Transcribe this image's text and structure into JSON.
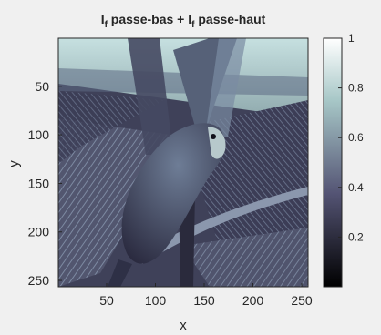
{
  "chart_data": {
    "type": "heatmap",
    "title_main": "I",
    "title_sub": "f",
    "title_rest": " passe-bas + I",
    "title_sub2": "f",
    "title_end": " passe-haut",
    "xlabel": "x",
    "ylabel": "y",
    "xlim": [
      1,
      256
    ],
    "ylim": [
      1,
      256
    ],
    "y_reversed": true,
    "x_ticks": [
      50,
      100,
      150,
      200,
      250
    ],
    "y_ticks": [
      50,
      100,
      150,
      200,
      250
    ],
    "colorbar": {
      "range": [
        0,
        1
      ],
      "ticks": [
        0.2,
        0.4,
        0.6,
        0.8,
        1
      ],
      "colormap": "bone",
      "colors": [
        "#000000",
        "#545474",
        "#a7c7c7",
        "#ffffff"
      ]
    },
    "image_description": "bone-colormap intensity image of a parrot perched in front of large palm fronds"
  }
}
